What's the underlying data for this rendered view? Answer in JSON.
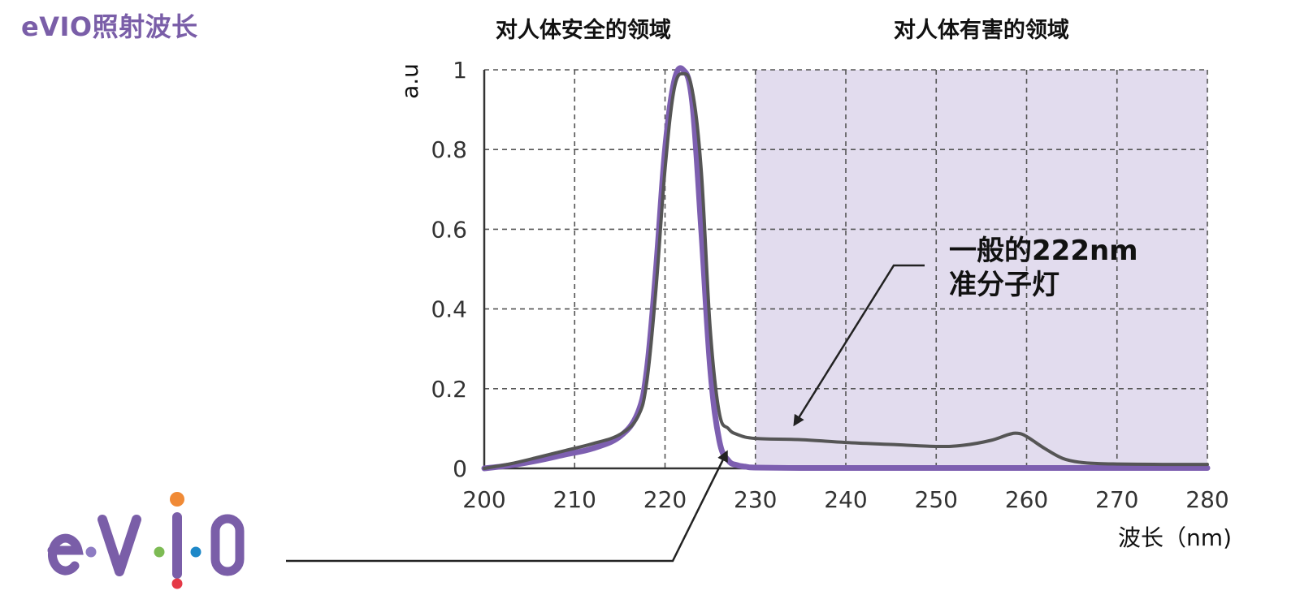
{
  "page": {
    "title": "eVIO照射波长"
  },
  "logo": {
    "text": "e·V·I·O",
    "dot_colors": [
      "#8e7cc3",
      "#7dbb54",
      "#1e88c8",
      "#f08a36",
      "#e53946"
    ],
    "text_color": "#7a5ea8"
  },
  "colors": {
    "evio_series": "#7d5fb0",
    "common_series": "#555555",
    "harmful_region": "#e2dcee",
    "grid": "#555555"
  },
  "chart_data": {
    "type": "line",
    "title": "",
    "xlabel": "波长（nm)",
    "ylabel": "a.u",
    "xlim": [
      200,
      280
    ],
    "ylim": [
      0,
      1
    ],
    "x_ticks": [
      200,
      210,
      220,
      230,
      240,
      250,
      260,
      270,
      280
    ],
    "y_ticks": [
      0,
      0.2,
      0.4,
      0.6,
      0.8,
      1
    ],
    "y_tick_labels": [
      "0",
      "0.2",
      "0.4",
      "0.6",
      "0.8",
      "1"
    ],
    "grid": true,
    "regions": [
      {
        "label": "对人体安全的领域",
        "x_range": [
          200,
          230
        ],
        "shaded": false
      },
      {
        "label": "对人体有害的领域",
        "x_range": [
          230,
          280
        ],
        "shaded": true
      }
    ],
    "series": [
      {
        "key": "evio",
        "x": [
          200,
          203,
          206,
          209,
          212,
          215,
          217,
          218,
          219,
          220,
          221,
          222,
          223,
          224,
          225,
          226,
          227,
          228,
          229,
          230,
          235,
          240,
          250,
          260,
          270,
          280
        ],
        "y": [
          0,
          0.008,
          0.02,
          0.035,
          0.05,
          0.08,
          0.14,
          0.25,
          0.5,
          0.8,
          0.97,
          1.0,
          0.92,
          0.6,
          0.25,
          0.07,
          0.02,
          0.008,
          0.004,
          0.002,
          0.001,
          0.001,
          0.001,
          0.001,
          0.001,
          0.001
        ]
      },
      {
        "key": "common",
        "annotation": "一般的222nm\n准分子灯",
        "x": [
          200,
          203,
          206,
          209,
          212,
          215,
          217,
          218,
          219,
          220,
          221,
          222,
          223,
          224,
          225,
          226,
          227,
          228,
          230,
          235,
          240,
          245,
          250,
          253,
          256,
          258,
          259,
          260,
          262,
          264,
          266,
          268,
          270,
          275,
          280
        ],
        "y": [
          0,
          0.012,
          0.028,
          0.045,
          0.062,
          0.085,
          0.13,
          0.22,
          0.45,
          0.75,
          0.95,
          0.99,
          0.95,
          0.75,
          0.35,
          0.14,
          0.1,
          0.085,
          0.075,
          0.072,
          0.065,
          0.06,
          0.055,
          0.058,
          0.07,
          0.085,
          0.088,
          0.08,
          0.05,
          0.025,
          0.015,
          0.012,
          0.011,
          0.01,
          0.01
        ]
      }
    ],
    "annotations": [
      {
        "text_lines": [
          "一般的222nm",
          "准分子灯"
        ],
        "target_series": "common",
        "target_x": 232
      },
      {
        "text_lines": [],
        "target_series": "evio",
        "target_x": 227
      }
    ]
  }
}
